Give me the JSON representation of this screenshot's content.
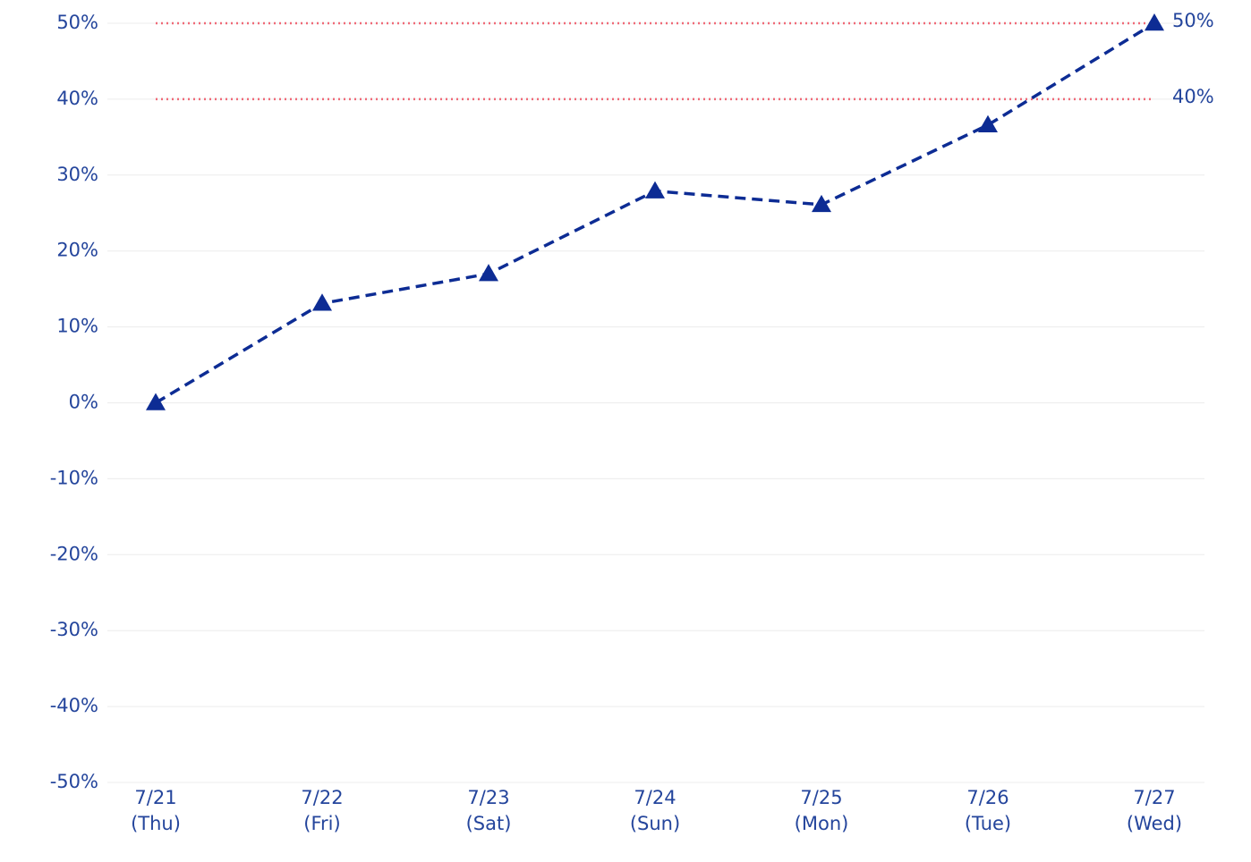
{
  "chart_data": {
    "type": "line",
    "categories": [
      [
        "7/21",
        "(Thu)"
      ],
      [
        "7/22",
        "(Fri)"
      ],
      [
        "7/23",
        "(Sat)"
      ],
      [
        "7/24",
        "(Sun)"
      ],
      [
        "7/25",
        "(Mon)"
      ],
      [
        "7/26",
        "(Tue)"
      ],
      [
        "7/27",
        "(Wed)"
      ]
    ],
    "series": [
      {
        "color": "#0d2c94",
        "values": [
          0,
          13.1,
          17,
          27.9,
          26.1,
          36.6,
          50
        ],
        "marker": "triangle",
        "dashed": true
      }
    ],
    "ylim": [
      -50,
      50
    ],
    "yticks": [
      {
        "value": -50,
        "label": "-50%"
      },
      {
        "value": -40,
        "label": "-40%"
      },
      {
        "value": -30,
        "label": "-30%"
      },
      {
        "value": -20,
        "label": "-20%"
      },
      {
        "value": -10,
        "label": "-10%"
      },
      {
        "value": 0,
        "label": "0%"
      },
      {
        "value": 10,
        "label": "10%"
      },
      {
        "value": 20,
        "label": "20%"
      },
      {
        "value": 30,
        "label": "30%"
      },
      {
        "value": 40,
        "label": "40%"
      },
      {
        "value": 50,
        "label": "50%"
      }
    ],
    "grid": true,
    "reference_lines": [
      {
        "value": 50,
        "label": "50%"
      },
      {
        "value": 40,
        "label": "40%"
      }
    ],
    "reference_color": "#f06a78"
  }
}
